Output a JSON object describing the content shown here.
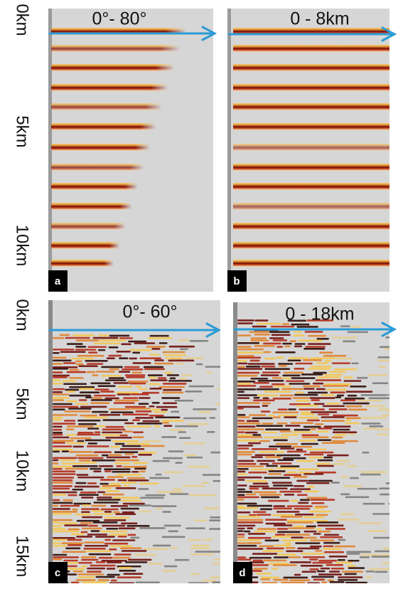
{
  "figure": {
    "depth_labels_top": [
      "0km",
      "5km",
      "10km"
    ],
    "depth_labels_bottom": [
      "0km",
      "5km",
      "10km",
      "15km"
    ],
    "panels": [
      {
        "label": "a",
        "title": "0°- 80°"
      },
      {
        "label": "b",
        "title": "0 - 8km"
      },
      {
        "label": "c",
        "title": "0°- 60°"
      },
      {
        "label": "d",
        "title": "0 - 18km"
      }
    ]
  }
}
